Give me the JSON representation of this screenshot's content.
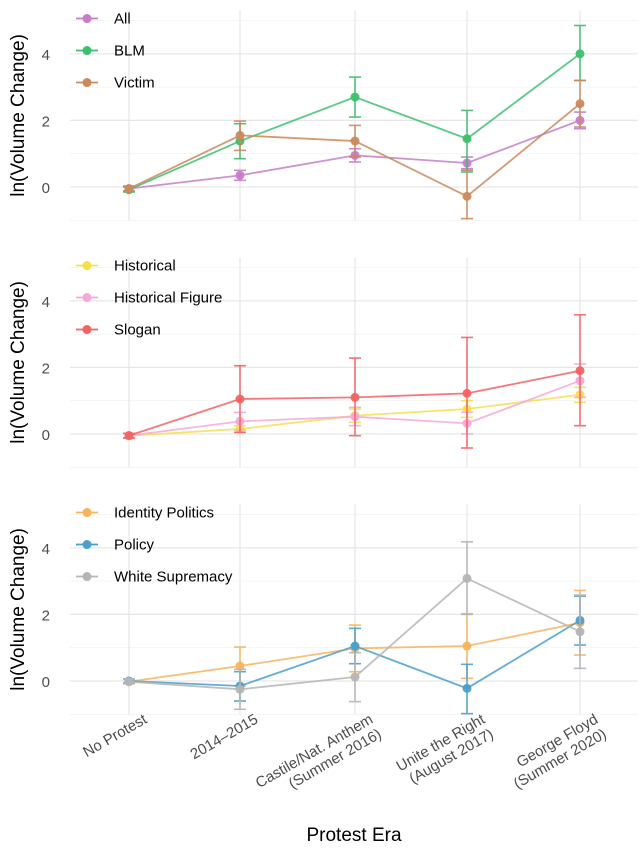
{
  "chart_data": {
    "type": "line",
    "xlabel": "Protest Era",
    "ylabel": "ln(Volume Change)",
    "categories": [
      [
        "No Protest"
      ],
      [
        "2014–2015"
      ],
      [
        "Castile/Nat. Anthem",
        "(Summer 2016)"
      ],
      [
        "Unite the Right",
        "(August 2017)"
      ],
      [
        "George Floyd",
        "(Summer 2020)"
      ]
    ],
    "ylim": [
      -1.0,
      5.3
    ],
    "yticks": [
      0,
      2,
      4
    ],
    "grid": true,
    "legend_position": "top-left",
    "panels": [
      {
        "series": [
          {
            "name": "All",
            "color": "#c77cc7",
            "values": [
              -0.05,
              0.35,
              0.95,
              0.72,
              2.0
            ],
            "lower": [
              -0.12,
              0.2,
              0.75,
              0.55,
              1.75
            ],
            "upper": [
              0.02,
              0.5,
              1.15,
              0.9,
              2.25
            ]
          },
          {
            "name": "BLM",
            "color": "#3dbf6e",
            "values": [
              -0.08,
              1.38,
              2.7,
              1.45,
              4.0
            ],
            "lower": [
              -0.15,
              0.85,
              2.1,
              0.45,
              3.2
            ],
            "upper": [
              0.0,
              1.9,
              3.3,
              2.3,
              4.85
            ]
          },
          {
            "name": "Victim",
            "color": "#c98a5e",
            "values": [
              -0.05,
              1.55,
              1.38,
              -0.28,
              2.5
            ],
            "lower": [
              -0.12,
              1.1,
              0.9,
              -0.95,
              1.8
            ],
            "upper": [
              0.03,
              1.98,
              1.85,
              0.5,
              3.2
            ]
          }
        ]
      },
      {
        "series": [
          {
            "name": "Historical",
            "color": "#f5e04a",
            "values": [
              -0.05,
              0.15,
              0.55,
              0.75,
              1.18
            ],
            "lower": [
              -0.12,
              0.05,
              0.35,
              0.5,
              0.95
            ],
            "upper": [
              0.02,
              0.25,
              0.75,
              1.0,
              1.4
            ]
          },
          {
            "name": "Historical Figure",
            "color": "#f7a8d8",
            "values": [
              -0.05,
              0.38,
              0.52,
              0.32,
              1.6
            ],
            "lower": [
              -0.12,
              0.12,
              0.25,
              0.0,
              1.1
            ],
            "upper": [
              0.02,
              0.65,
              0.8,
              0.65,
              2.1
            ]
          },
          {
            "name": "Slogan",
            "color": "#f26363",
            "values": [
              -0.05,
              1.05,
              1.1,
              1.22,
              1.9
            ],
            "lower": [
              -0.12,
              0.05,
              -0.05,
              -0.42,
              0.25
            ],
            "upper": [
              0.02,
              2.05,
              2.28,
              2.9,
              3.58
            ]
          }
        ]
      },
      {
        "series": [
          {
            "name": "Identity Politics",
            "color": "#f7b45c",
            "values": [
              -0.02,
              0.45,
              0.98,
              1.05,
              1.75
            ],
            "lower": [
              -0.08,
              -0.15,
              0.28,
              0.08,
              0.78
            ],
            "upper": [
              0.05,
              1.02,
              1.68,
              2.02,
              2.72
            ]
          },
          {
            "name": "Policy",
            "color": "#4a9fcb",
            "values": [
              0.0,
              -0.15,
              1.05,
              -0.22,
              1.82
            ],
            "lower": [
              -0.06,
              -0.6,
              0.52,
              -0.98,
              1.08
            ],
            "upper": [
              0.06,
              0.28,
              1.58,
              0.5,
              2.55
            ]
          },
          {
            "name": "White Supremacy",
            "color": "#b5b5b5",
            "values": [
              -0.02,
              -0.25,
              0.12,
              3.08,
              1.48
            ],
            "lower": [
              -0.08,
              -0.85,
              -0.62,
              2.0,
              0.38
            ],
            "upper": [
              0.05,
              0.35,
              0.85,
              4.18,
              2.58
            ]
          }
        ]
      }
    ]
  }
}
